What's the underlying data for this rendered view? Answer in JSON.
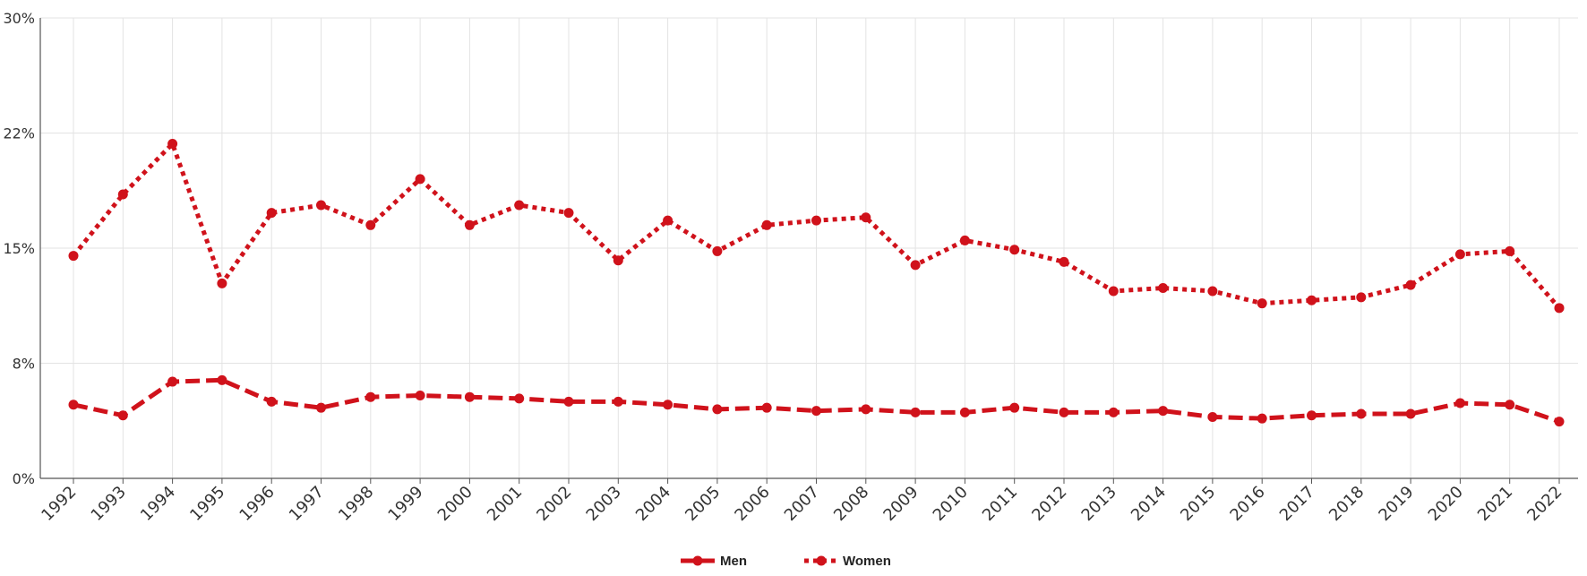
{
  "chart_data": {
    "type": "line",
    "title": "",
    "xlabel": "",
    "ylabel": "",
    "x": [
      "1992",
      "1993",
      "1994",
      "1995",
      "1996",
      "1997",
      "1998",
      "1999",
      "2000",
      "2001",
      "2002",
      "2003",
      "2004",
      "2005",
      "2006",
      "2007",
      "2008",
      "2009",
      "2010",
      "2011",
      "2012",
      "2013",
      "2014",
      "2015",
      "2016",
      "2017",
      "2018",
      "2019",
      "2020",
      "2021",
      "2022"
    ],
    "y_ticks": [
      0,
      7.5,
      15,
      22.5,
      30
    ],
    "y_tick_labels": [
      "0%",
      "8%",
      "15%",
      "22%",
      "30%"
    ],
    "ylim": [
      0,
      30
    ],
    "grid": true,
    "legend_position": "bottom-center",
    "series": [
      {
        "name": "Men",
        "color": "#d0121b",
        "line_style": "dashed",
        "values": [
          4.8,
          4.1,
          6.3,
          6.4,
          5.0,
          4.6,
          5.3,
          5.4,
          5.3,
          5.2,
          5.0,
          5.0,
          4.8,
          4.5,
          4.6,
          4.4,
          4.5,
          4.3,
          4.3,
          4.6,
          4.3,
          4.3,
          4.4,
          4.0,
          3.9,
          4.1,
          4.2,
          4.2,
          4.9,
          4.8,
          3.7
        ]
      },
      {
        "name": "Women",
        "color": "#d0121b",
        "line_style": "dotted",
        "values": [
          14.5,
          18.5,
          21.8,
          12.7,
          17.3,
          17.8,
          16.5,
          19.5,
          16.5,
          17.8,
          17.3,
          14.2,
          16.8,
          14.8,
          16.5,
          16.8,
          17.0,
          13.9,
          15.5,
          14.9,
          14.1,
          12.2,
          12.4,
          12.2,
          11.4,
          11.6,
          11.8,
          12.6,
          14.6,
          14.8,
          11.1
        ]
      }
    ]
  }
}
